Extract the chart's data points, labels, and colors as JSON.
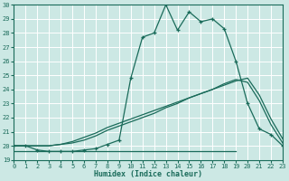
{
  "xlabel": "Humidex (Indice chaleur)",
  "bg_color": "#cce8e4",
  "grid_color": "#ffffff",
  "line_color": "#1a6b5a",
  "ylim": [
    19,
    30
  ],
  "xlim": [
    0,
    23
  ],
  "yticks": [
    19,
    20,
    21,
    22,
    23,
    24,
    25,
    26,
    27,
    28,
    29,
    30
  ],
  "xticks": [
    0,
    1,
    2,
    3,
    4,
    5,
    6,
    7,
    8,
    9,
    10,
    11,
    12,
    13,
    14,
    15,
    16,
    17,
    18,
    19,
    20,
    21,
    22,
    23
  ],
  "line1_x": [
    0,
    1,
    2,
    3,
    4,
    5,
    6,
    7,
    8,
    9,
    10,
    11,
    12,
    13,
    14,
    15,
    16,
    17,
    18,
    19,
    20,
    21,
    22,
    23
  ],
  "line1_y": [
    20.0,
    20.0,
    19.7,
    19.6,
    19.6,
    19.6,
    19.7,
    19.8,
    20.1,
    20.4,
    24.8,
    27.7,
    28.0,
    30.0,
    28.2,
    29.5,
    28.8,
    29.0,
    28.3,
    26.0,
    23.0,
    21.2,
    20.8,
    20.0
  ],
  "line2_x": [
    0,
    19
  ],
  "line2_y": [
    19.6,
    19.6
  ],
  "line3_x": [
    0,
    1,
    2,
    3,
    4,
    5,
    6,
    7,
    8,
    9,
    10,
    11,
    12,
    13,
    14,
    15,
    16,
    17,
    18,
    19,
    20,
    21,
    22,
    23
  ],
  "line3_y": [
    20.0,
    20.0,
    20.0,
    20.0,
    20.1,
    20.2,
    20.4,
    20.7,
    21.1,
    21.4,
    21.7,
    22.0,
    22.3,
    22.7,
    23.0,
    23.4,
    23.7,
    24.0,
    24.4,
    24.7,
    24.5,
    23.2,
    21.5,
    20.2
  ],
  "line4_x": [
    0,
    1,
    2,
    3,
    4,
    5,
    6,
    7,
    8,
    9,
    10,
    11,
    12,
    13,
    14,
    15,
    16,
    17,
    18,
    19,
    20,
    21,
    22,
    23
  ],
  "line4_y": [
    20.0,
    20.0,
    20.0,
    20.0,
    20.1,
    20.3,
    20.6,
    20.9,
    21.3,
    21.6,
    21.9,
    22.2,
    22.5,
    22.8,
    23.1,
    23.4,
    23.7,
    24.0,
    24.3,
    24.6,
    24.8,
    23.6,
    21.9,
    20.5
  ]
}
